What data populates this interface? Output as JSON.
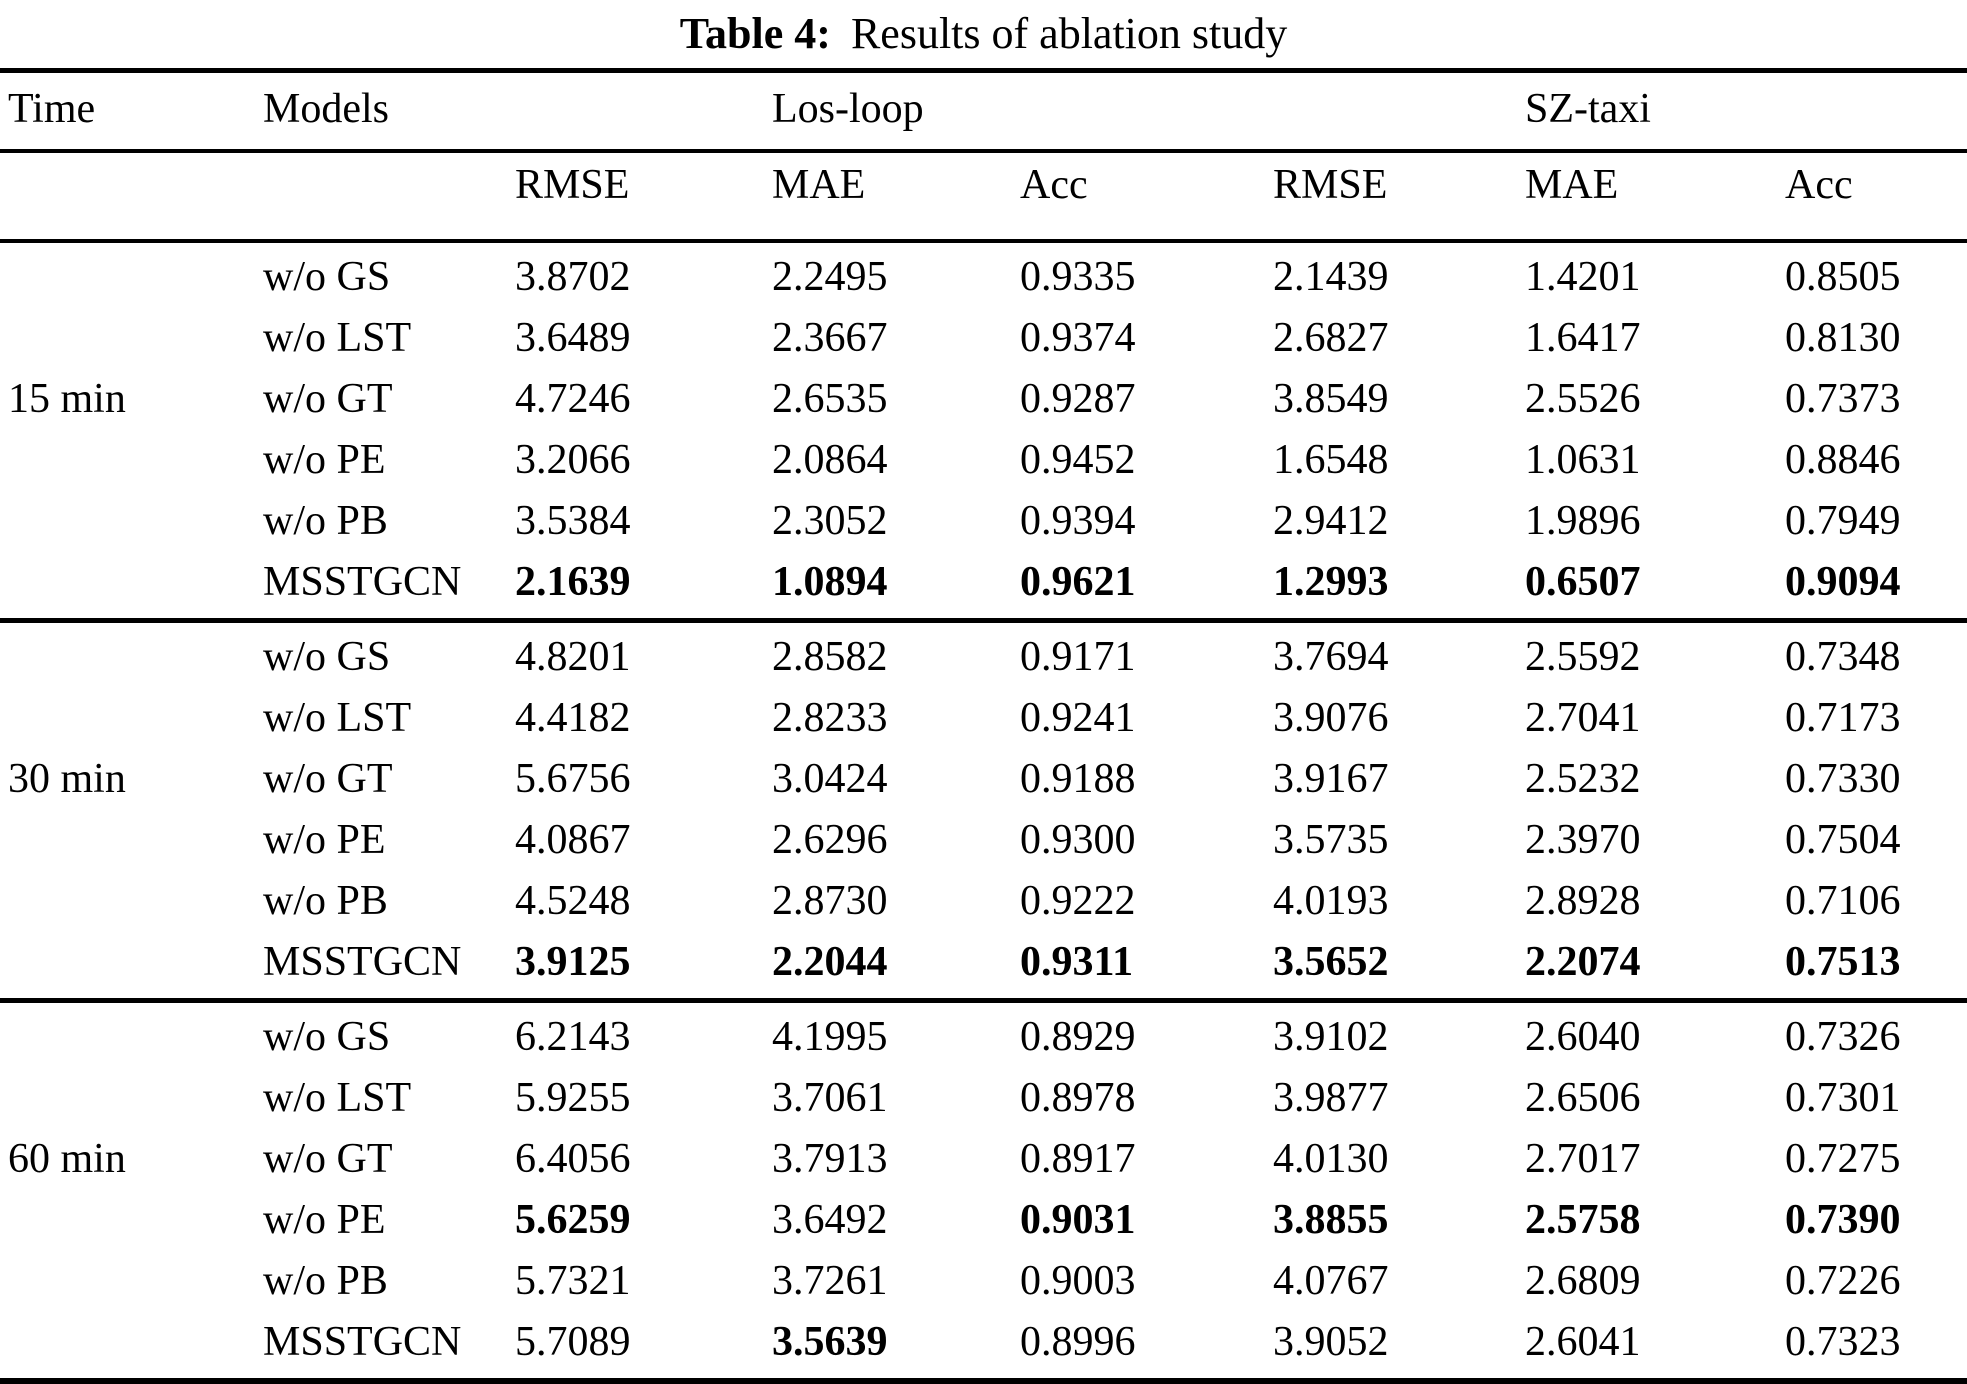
{
  "title": {
    "prefix": "Table 4:",
    "text": "Results of ablation study"
  },
  "table": {
    "headers": {
      "time": "Time",
      "models": "Models",
      "dataset1": "Los-loop",
      "dataset2": "SZ-taxi"
    },
    "metric_headers": [
      "RMSE",
      "MAE",
      "Acc",
      "RMSE",
      "MAE",
      "Acc"
    ],
    "groups": [
      {
        "time": "15 min",
        "rows": [
          {
            "model": "w/o GS",
            "values": [
              "3.8702",
              "2.2495",
              "0.9335",
              "2.1439",
              "1.4201",
              "0.8505"
            ],
            "bold": [
              false,
              false,
              false,
              false,
              false,
              false
            ]
          },
          {
            "model": "w/o LST",
            "values": [
              "3.6489",
              "2.3667",
              "0.9374",
              "2.6827",
              "1.6417",
              "0.8130"
            ],
            "bold": [
              false,
              false,
              false,
              false,
              false,
              false
            ]
          },
          {
            "model": "w/o GT",
            "values": [
              "4.7246",
              "2.6535",
              "0.9287",
              "3.8549",
              "2.5526",
              "0.7373"
            ],
            "bold": [
              false,
              false,
              false,
              false,
              false,
              false
            ]
          },
          {
            "model": "w/o PE",
            "values": [
              "3.2066",
              "2.0864",
              "0.9452",
              "1.6548",
              "1.0631",
              "0.8846"
            ],
            "bold": [
              false,
              false,
              false,
              false,
              false,
              false
            ]
          },
          {
            "model": "w/o PB",
            "values": [
              "3.5384",
              "2.3052",
              "0.9394",
              "2.9412",
              "1.9896",
              "0.7949"
            ],
            "bold": [
              false,
              false,
              false,
              false,
              false,
              false
            ]
          },
          {
            "model": "MSSTGCN",
            "values": [
              "2.1639",
              "1.0894",
              "0.9621",
              "1.2993",
              "0.6507",
              "0.9094"
            ],
            "bold": [
              true,
              true,
              true,
              true,
              true,
              true
            ]
          }
        ]
      },
      {
        "time": "30 min",
        "rows": [
          {
            "model": "w/o GS",
            "values": [
              "4.8201",
              "2.8582",
              "0.9171",
              "3.7694",
              "2.5592",
              "0.7348"
            ],
            "bold": [
              false,
              false,
              false,
              false,
              false,
              false
            ]
          },
          {
            "model": "w/o LST",
            "values": [
              "4.4182",
              "2.8233",
              "0.9241",
              "3.9076",
              "2.7041",
              "0.7173"
            ],
            "bold": [
              false,
              false,
              false,
              false,
              false,
              false
            ]
          },
          {
            "model": "w/o GT",
            "values": [
              "5.6756",
              "3.0424",
              "0.9188",
              "3.9167",
              "2.5232",
              "0.7330"
            ],
            "bold": [
              false,
              false,
              false,
              false,
              false,
              false
            ]
          },
          {
            "model": "w/o PE",
            "values": [
              "4.0867",
              "2.6296",
              "0.9300",
              "3.5735",
              "2.3970",
              "0.7504"
            ],
            "bold": [
              false,
              false,
              false,
              false,
              false,
              false
            ]
          },
          {
            "model": "w/o PB",
            "values": [
              "4.5248",
              "2.8730",
              "0.9222",
              "4.0193",
              "2.8928",
              "0.7106"
            ],
            "bold": [
              false,
              false,
              false,
              false,
              false,
              false
            ]
          },
          {
            "model": "MSSTGCN",
            "values": [
              "3.9125",
              "2.2044",
              "0.9311",
              "3.5652",
              "2.2074",
              "0.7513"
            ],
            "bold": [
              true,
              true,
              true,
              true,
              true,
              true
            ]
          }
        ]
      },
      {
        "time": "60 min",
        "rows": [
          {
            "model": "w/o GS",
            "values": [
              "6.2143",
              "4.1995",
              "0.8929",
              "3.9102",
              "2.6040",
              "0.7326"
            ],
            "bold": [
              false,
              false,
              false,
              false,
              false,
              false
            ]
          },
          {
            "model": "w/o LST",
            "values": [
              "5.9255",
              "3.7061",
              "0.8978",
              "3.9877",
              "2.6506",
              "0.7301"
            ],
            "bold": [
              false,
              false,
              false,
              false,
              false,
              false
            ]
          },
          {
            "model": "w/o GT",
            "values": [
              "6.4056",
              "3.7913",
              "0.8917",
              "4.0130",
              "2.7017",
              "0.7275"
            ],
            "bold": [
              false,
              false,
              false,
              false,
              false,
              false
            ]
          },
          {
            "model": "w/o PE",
            "values": [
              "5.6259",
              "3.6492",
              "0.9031",
              "3.8855",
              "2.5758",
              "0.7390"
            ],
            "bold": [
              true,
              false,
              true,
              true,
              true,
              true
            ]
          },
          {
            "model": "w/o PB",
            "values": [
              "5.7321",
              "3.7261",
              "0.9003",
              "4.0767",
              "2.6809",
              "0.7226"
            ],
            "bold": [
              false,
              false,
              false,
              false,
              false,
              false
            ]
          },
          {
            "model": "MSSTGCN",
            "values": [
              "5.7089",
              "3.5639",
              "0.8996",
              "3.9052",
              "2.6041",
              "0.7323"
            ],
            "bold": [
              false,
              true,
              false,
              false,
              false,
              false
            ]
          }
        ]
      }
    ]
  }
}
